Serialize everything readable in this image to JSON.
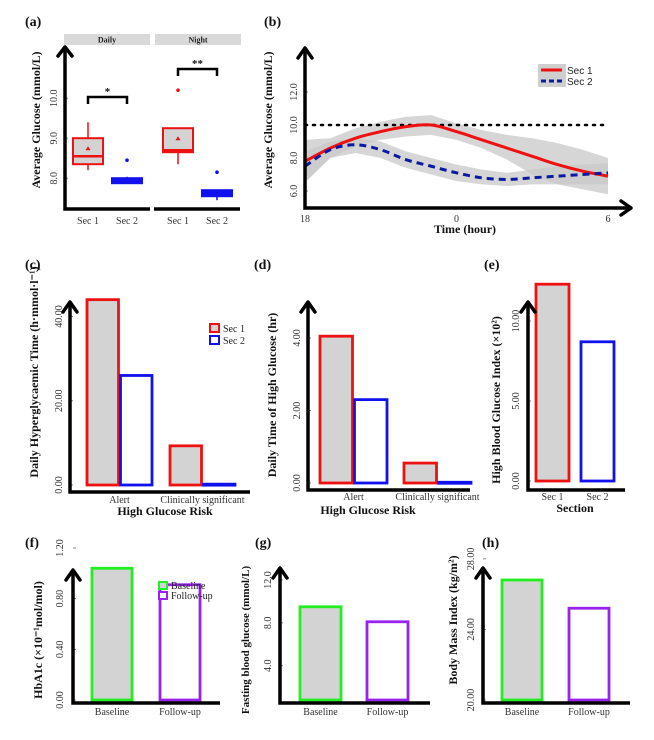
{
  "colors": {
    "sec1": "#ee1111",
    "sec2": "#1111ee",
    "baseline": "#22ee22",
    "followup": "#9922ee",
    "fill_gray": "#d3d3d3",
    "band_gray": "#c8c8c8",
    "strip_gray": "#d9d9d9",
    "dashed_navy": "#0a1aa0"
  },
  "chart_data": [
    {
      "id": "a",
      "panel_label": "(a)",
      "type": "box",
      "ylabel": "Average Glucose (mmol/L)",
      "yticks": [
        "8.0",
        "9.0",
        "10.0"
      ],
      "ylim": [
        7.3,
        11.5
      ],
      "facets": [
        {
          "strip": "Daily",
          "significance": "*",
          "groups": [
            {
              "name": "Sec 1",
              "q1": 8.35,
              "median": 8.55,
              "q3": 9.0,
              "whisker_low": 8.2,
              "whisker_high": 9.4,
              "mean": 8.75,
              "outliers": []
            },
            {
              "name": "Sec 2",
              "q1": 7.9,
              "median": 7.95,
              "q3": 8.0,
              "whisker_low": 7.9,
              "whisker_high": 8.02,
              "mean": 8.0,
              "outliers": [
                8.45
              ]
            }
          ]
        },
        {
          "strip": "Night",
          "significance": "**",
          "groups": [
            {
              "name": "Sec 1",
              "q1": 8.65,
              "median": 8.7,
              "q3": 9.25,
              "whisker_low": 8.35,
              "whisker_high": 9.25,
              "mean": 9.0,
              "outliers": [
                10.2
              ]
            },
            {
              "name": "Sec 2",
              "q1": 7.55,
              "median": 7.6,
              "q3": 7.7,
              "whisker_low": 7.45,
              "whisker_high": 7.7,
              "mean": 7.6,
              "outliers": [
                8.15
              ]
            }
          ]
        }
      ]
    },
    {
      "id": "b",
      "panel_label": "(b)",
      "type": "line",
      "ylabel": "Average Glucose (mmol/L)",
      "xlabel": "Time (hour)",
      "xticks": [
        "18",
        "0",
        "6"
      ],
      "yticks": [
        "6.0",
        "8.0",
        "10.0",
        "12.0"
      ],
      "ylim": [
        5.0,
        14.0
      ],
      "x": [
        0,
        2,
        4,
        6,
        8,
        10,
        12,
        14,
        16,
        18,
        20,
        22,
        24
      ],
      "xlim": [
        0,
        24
      ],
      "reference_line": 10.0,
      "series": [
        {
          "name": "Sec 1",
          "style": "solid",
          "values": [
            7.8,
            8.6,
            9.2,
            9.6,
            9.9,
            10.0,
            9.6,
            9.1,
            8.6,
            8.1,
            7.6,
            7.2,
            6.9
          ],
          "lower": [
            6.5,
            8.0,
            8.7,
            9.1,
            9.3,
            9.4,
            9.1,
            8.6,
            7.9,
            7.0,
            6.4,
            6.1,
            5.8
          ],
          "upper": [
            9.1,
            9.2,
            9.8,
            10.2,
            10.5,
            10.6,
            10.1,
            9.7,
            9.4,
            9.2,
            8.9,
            8.5,
            8.0
          ]
        },
        {
          "name": "Sec 2",
          "style": "dashed",
          "values": [
            7.5,
            8.5,
            8.8,
            8.5,
            7.9,
            7.5,
            7.1,
            6.8,
            6.7,
            6.8,
            6.9,
            7.0,
            7.1
          ],
          "lower": [
            6.6,
            8.0,
            8.3,
            8.0,
            7.4,
            7.0,
            6.6,
            6.4,
            6.3,
            6.4,
            6.4,
            6.4,
            6.4
          ],
          "upper": [
            8.4,
            9.0,
            9.2,
            9.0,
            8.4,
            8.0,
            7.6,
            7.3,
            7.1,
            7.3,
            7.5,
            7.6,
            7.7
          ]
        }
      ],
      "legend": "top-right"
    },
    {
      "id": "c",
      "panel_label": "(c)",
      "type": "bar",
      "ylabel": "Daily Hyperglycaemic Time (h·mmol·l⁻¹)",
      "xlabel": "High Glucose Risk",
      "categories": [
        "Alert",
        "Clinically significant"
      ],
      "yticks": [
        "0.00",
        "20.00",
        "40.00"
      ],
      "ylim": [
        0,
        48
      ],
      "series": [
        {
          "name": "Sec 1",
          "values": [
            44.0,
            9.3
          ]
        },
        {
          "name": "Sec 2",
          "values": [
            26.0,
            0.2
          ]
        }
      ],
      "legend": "top-right"
    },
    {
      "id": "d",
      "panel_label": "(d)",
      "type": "bar",
      "ylabel": "Daily Time of High Glucose (hr)",
      "xlabel": "High Glucose Risk",
      "categories": [
        "Alert",
        "Clinically significant"
      ],
      "yticks": [
        "0.00",
        "2.00",
        "4.00"
      ],
      "ylim": [
        0,
        4.8
      ],
      "series": [
        {
          "name": "Sec 1",
          "values": [
            4.05,
            0.55
          ]
        },
        {
          "name": "Sec 2",
          "values": [
            2.3,
            0.02
          ]
        }
      ]
    },
    {
      "id": "e",
      "panel_label": "(e)",
      "type": "bar",
      "ylabel": "High Blood Glucose Index (×10²)",
      "xlabel": "Section",
      "categories": [
        "Sec 1",
        "Sec 2"
      ],
      "yticks": [
        "0.00",
        "5.00",
        "10.00"
      ],
      "ylim": [
        0,
        14
      ],
      "values": [
        12.3,
        8.7
      ]
    },
    {
      "id": "f",
      "panel_label": "(f)",
      "type": "bar",
      "ylabel": "HbA1c  (×10⁻¹mol/mol)",
      "categories": [
        "Baseline",
        "Follow-up"
      ],
      "yticks": [
        "0.00",
        "0.40",
        "0.80",
        "1.20"
      ],
      "ylim": [
        0,
        1.3
      ],
      "values": [
        1.04,
        0.91
      ],
      "legend": "top-right"
    },
    {
      "id": "g",
      "panel_label": "(g)",
      "type": "bar",
      "ylabel": "Fasting blood glucose (mmol/L)",
      "categories": [
        "Baseline",
        "Follow-up"
      ],
      "yticks": [
        "4.0",
        "8.0",
        "12.0"
      ],
      "ylim": [
        1.5,
        14
      ],
      "values": [
        9.5,
        8.1
      ]
    },
    {
      "id": "h",
      "panel_label": "(h)",
      "type": "bar",
      "ylabel": "Body Mass Index (kg/m²)",
      "categories": [
        "Baseline",
        "Follow-up"
      ],
      "yticks": [
        "20.00",
        "24.00",
        "28.00"
      ],
      "ylim": [
        20,
        29.5
      ],
      "values": [
        26.8,
        25.2
      ]
    }
  ]
}
